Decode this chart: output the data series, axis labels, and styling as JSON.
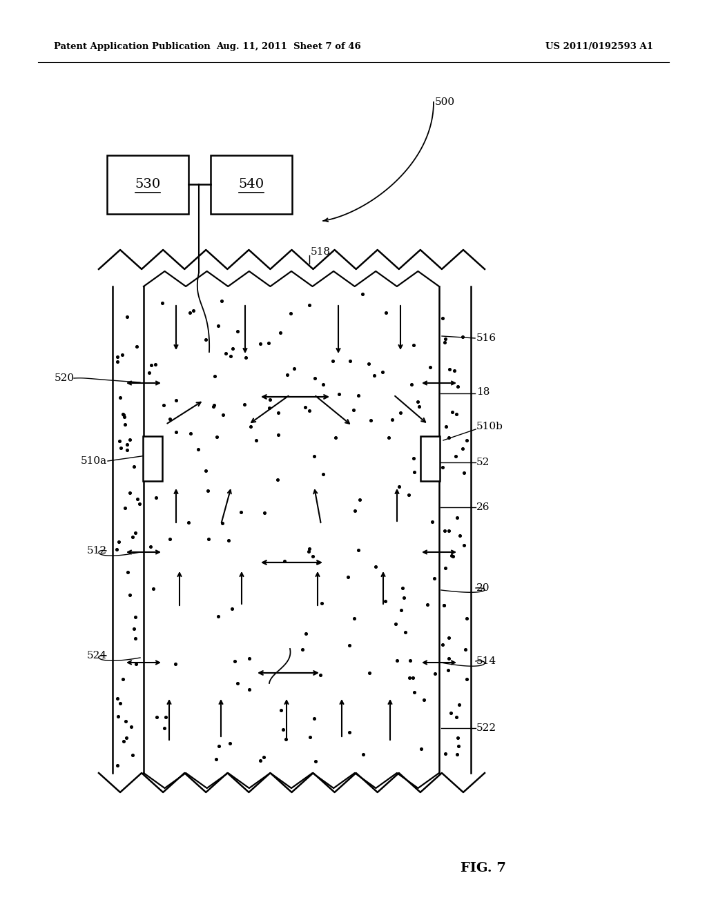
{
  "header_left": "Patent Application Publication",
  "header_mid": "Aug. 11, 2011  Sheet 7 of 46",
  "header_right": "US 2011/0192593 A1",
  "fig_label": "FIG. 7",
  "bg_color": "#ffffff",
  "line_color": "#000000"
}
